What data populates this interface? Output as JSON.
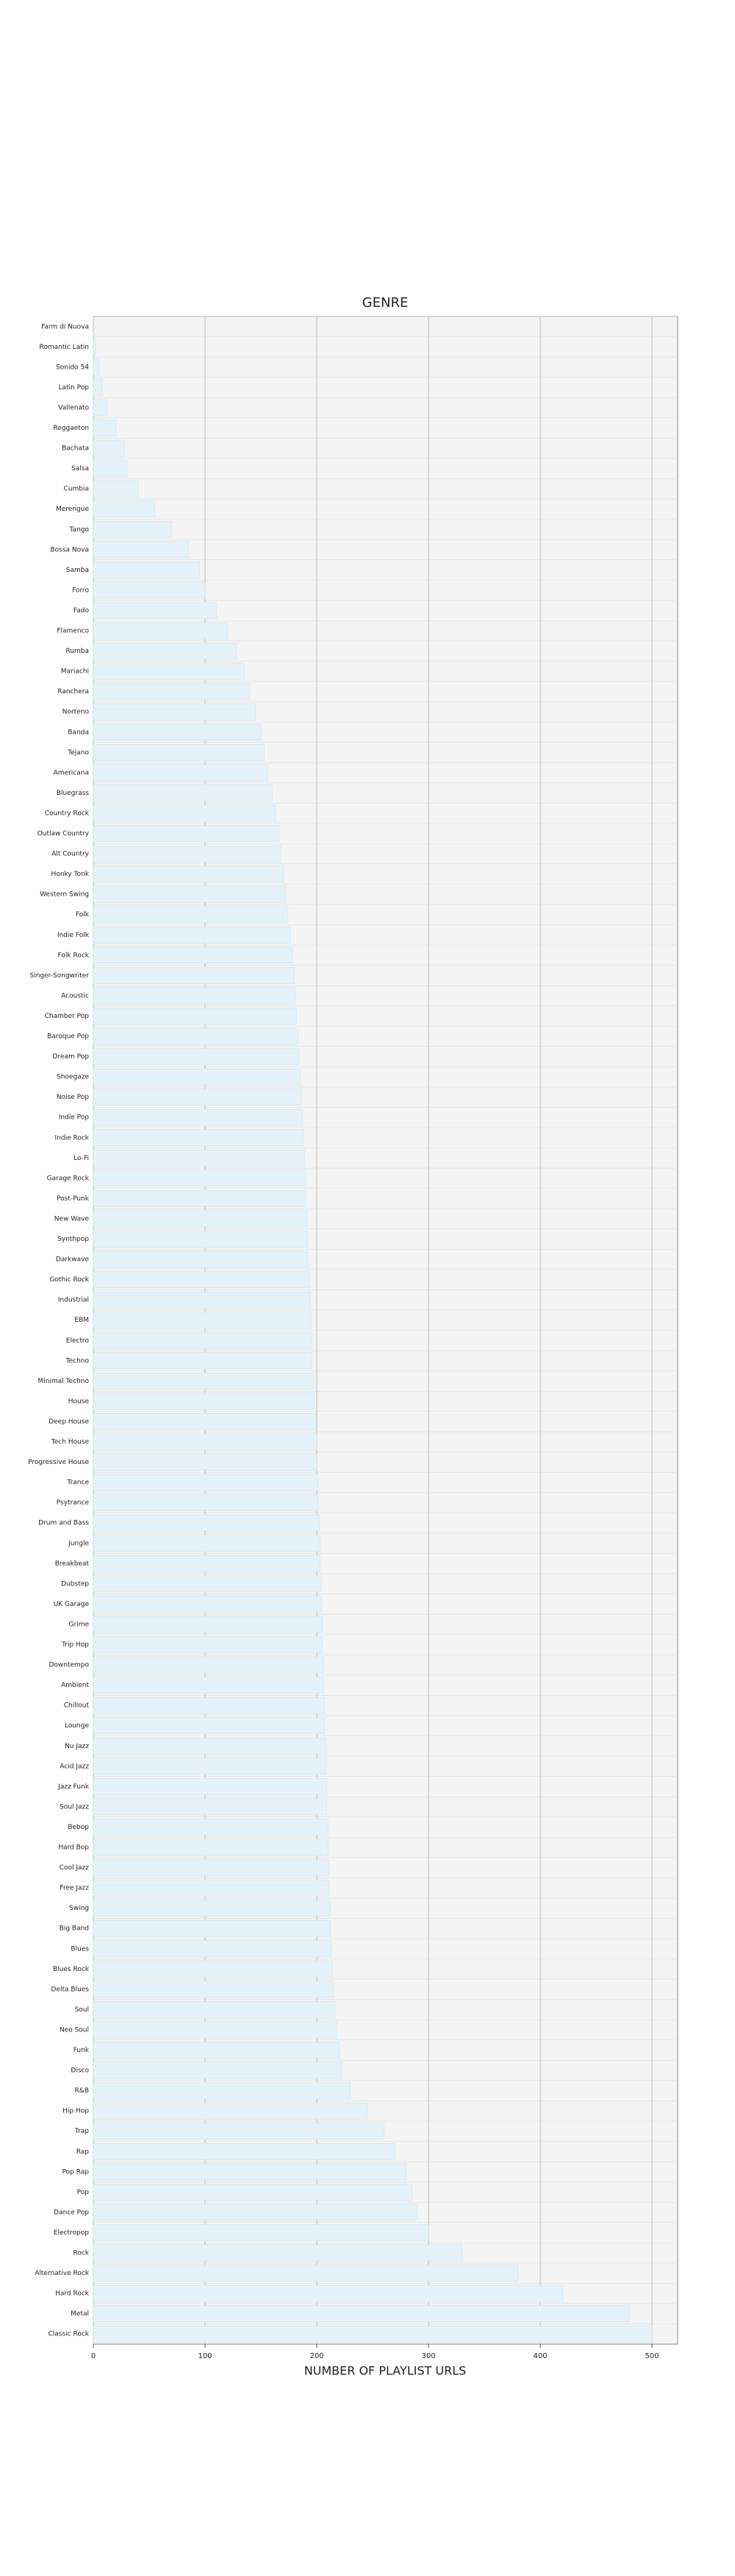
{
  "chart_data": {
    "type": "barh",
    "title": "GENRE",
    "xlabel": "NUMBER OF PLAYLIST URLS",
    "categories": [
      "Farm di Nuova",
      "Romantic Latin",
      "Sonido 54",
      "Latin Pop",
      "Vallenato",
      "Reggaeton",
      "Bachata",
      "Salsa",
      "Cumbia",
      "Merengue",
      "Tango",
      "Bossa Nova",
      "Samba",
      "Forro",
      "Fado",
      "Flamenco",
      "Rumba",
      "Mariachi",
      "Ranchera",
      "Norteno",
      "Banda",
      "Tejano",
      "Americana",
      "Bluegrass",
      "Country Rock",
      "Outlaw Country",
      "Alt Country",
      "Honky Tonk",
      "Western Swing",
      "Folk",
      "Indie Folk",
      "Folk Rock",
      "Singer-Songwriter",
      "Acoustic",
      "Chamber Pop",
      "Baroque Pop",
      "Dream Pop",
      "Shoegaze",
      "Noise Pop",
      "Indie Pop",
      "Indie Rock",
      "Lo-Fi",
      "Garage Rock",
      "Post-Punk",
      "New Wave",
      "Synthpop",
      "Darkwave",
      "Gothic Rock",
      "Industrial",
      "EBM",
      "Electro",
      "Techno",
      "Minimal Techno",
      "House",
      "Deep House",
      "Tech House",
      "Progressive House",
      "Trance",
      "Psytrance",
      "Drum and Bass",
      "Jungle",
      "Breakbeat",
      "Dubstep",
      "UK Garage",
      "Grime",
      "Trip Hop",
      "Downtempo",
      "Ambient",
      "Chillout",
      "Lounge",
      "Nu Jazz",
      "Acid Jazz",
      "Jazz Funk",
      "Soul Jazz",
      "Bebop",
      "Hard Bop",
      "Cool Jazz",
      "Free Jazz",
      "Swing",
      "Big Band",
      "Blues",
      "Blues Rock",
      "Delta Blues",
      "Soul",
      "Neo Soul",
      "Funk",
      "Disco",
      "R&B",
      "Hip Hop",
      "Trap",
      "Rap",
      "Pop Rap",
      "Pop",
      "Dance Pop",
      "Electropop",
      "Rock",
      "Alternative Rock",
      "Hard Rock",
      "Metal",
      "Classic Rock"
    ],
    "values": [
      0,
      2,
      5,
      8,
      12,
      20,
      28,
      30,
      40,
      55,
      70,
      85,
      95,
      100,
      110,
      120,
      128,
      135,
      140,
      145,
      150,
      153,
      156,
      160,
      163,
      166,
      168,
      170,
      172,
      174,
      176,
      178,
      180,
      181,
      182,
      183,
      184,
      185,
      186,
      187,
      188,
      189,
      190,
      190,
      191,
      192,
      192,
      193,
      194,
      195,
      196,
      196,
      197,
      198,
      199,
      200,
      200,
      201,
      201,
      202,
      203,
      203,
      204,
      204,
      205,
      205,
      206,
      206,
      207,
      207,
      208,
      208,
      209,
      209,
      210,
      210,
      211,
      211,
      212,
      212,
      213,
      214,
      215,
      216,
      218,
      220,
      222,
      230,
      245,
      260,
      270,
      280,
      285,
      290,
      300,
      330,
      380,
      420,
      480,
      500
    ],
    "color": "#e6f2fa",
    "xlim": [
      0,
      523
    ],
    "xticks": [
      0,
      100,
      200,
      300,
      400,
      500
    ],
    "grid": true
  }
}
